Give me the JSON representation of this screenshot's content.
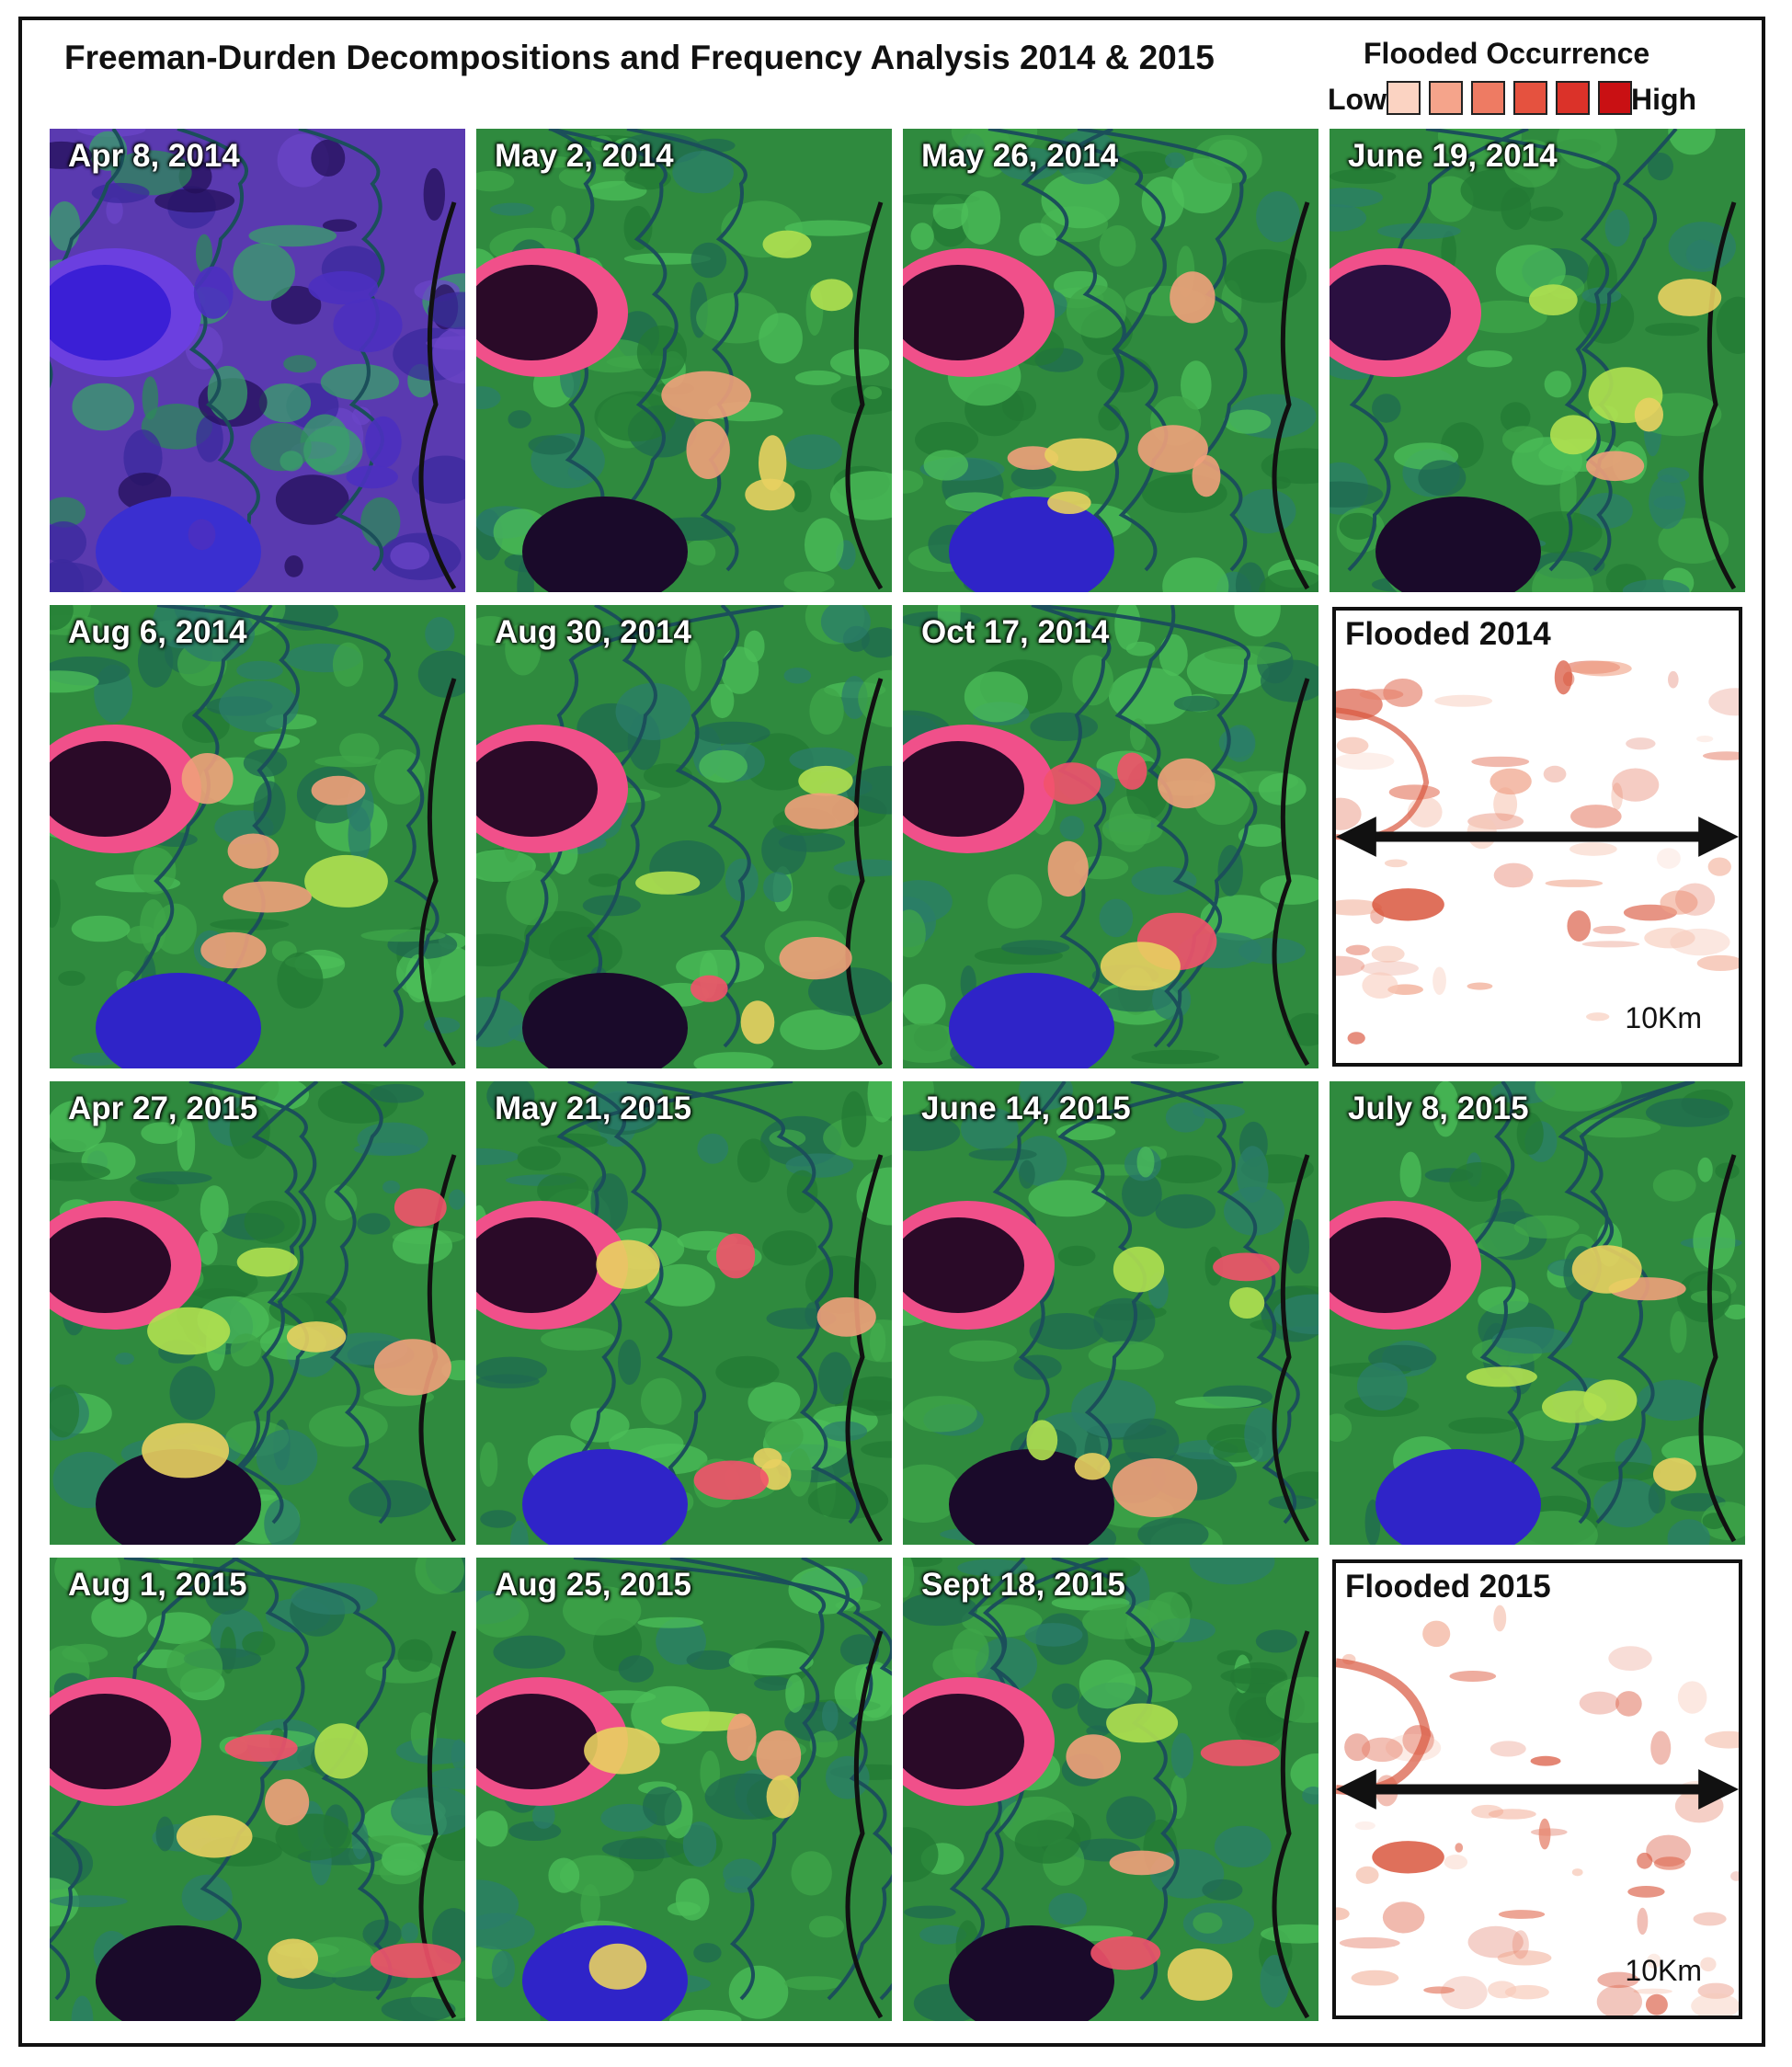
{
  "header": {
    "title": "Freeman-Durden Decompositions and Frequency Analysis 2014 & 2015"
  },
  "legend": {
    "title": "Flooded Occurrence",
    "low_label": "Low",
    "high_label": "High",
    "swatches": [
      "#fbd3c2",
      "#f5a48b",
      "#ee7b63",
      "#e5523f",
      "#db3229",
      "#c91013"
    ]
  },
  "panels": [
    {
      "date": "Apr 8, 2014",
      "palette": "purple"
    },
    {
      "date": "May 2, 2014",
      "palette": "green"
    },
    {
      "date": "May 26, 2014",
      "palette": "green"
    },
    {
      "date": "June 19, 2014",
      "palette": "red"
    },
    {
      "date": "Aug 6, 2014",
      "palette": "green"
    },
    {
      "date": "Aug 30, 2014",
      "palette": "green"
    },
    {
      "date": "Oct 17, 2014",
      "palette": "green"
    },
    {
      "date": "Apr 27, 2015",
      "palette": "green"
    },
    {
      "date": "May 21, 2015",
      "palette": "green"
    },
    {
      "date": "June 14, 2015",
      "palette": "green"
    },
    {
      "date": "July 8, 2015",
      "palette": "green"
    },
    {
      "date": "Aug 1, 2015",
      "palette": "green"
    },
    {
      "date": "Aug 25, 2015",
      "palette": "green"
    },
    {
      "date": "Sept 18, 2015",
      "palette": "green"
    }
  ],
  "flood_maps": [
    {
      "title": "Flooded 2014",
      "scale_label": "10Km"
    },
    {
      "title": "Flooded 2015",
      "scale_label": "10Km"
    }
  ],
  "colors": {
    "vegetation": "#2f8a3e",
    "water_blue": "#3a2fd0",
    "dark_water": "#1a0a2a",
    "flood_pink": "#f2526a",
    "flood_map": "#d9573e"
  }
}
